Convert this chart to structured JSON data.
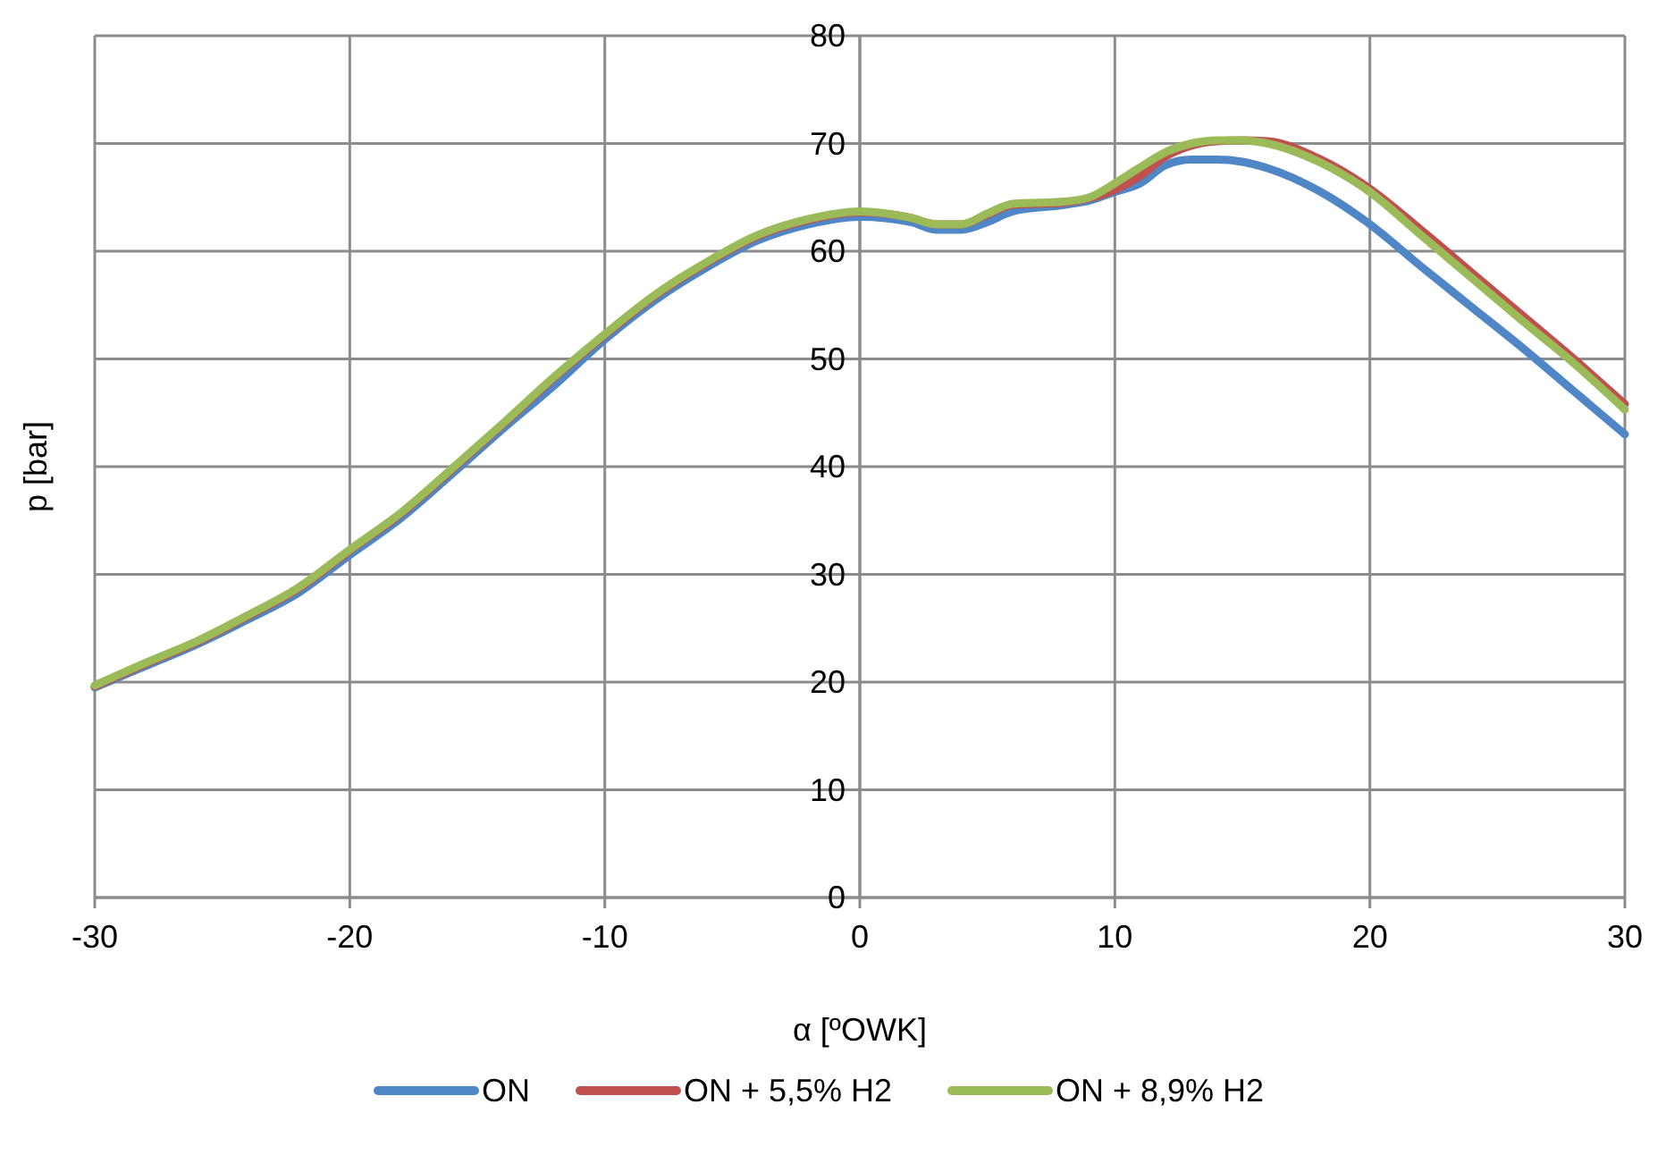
{
  "chart_data": {
    "type": "line",
    "xlabel": "α [ºOWK]",
    "ylabel": "p [bar]",
    "x": [
      -30,
      -28,
      -26,
      -24,
      -22,
      -20,
      -18,
      -16,
      -14,
      -12,
      -10,
      -8,
      -6,
      -4,
      -2,
      0,
      2,
      3,
      4,
      5,
      6,
      8,
      9,
      10,
      11,
      12,
      13,
      14,
      15,
      16,
      18,
      20,
      22,
      24,
      26,
      28,
      30
    ],
    "series": [
      {
        "name": "ON",
        "color": "#4f87c6",
        "values": [
          19.5,
          21.5,
          23.5,
          25.8,
          28.3,
          31.8,
          35.2,
          39.3,
          43.5,
          47.5,
          51.8,
          55.5,
          58.5,
          61,
          62.5,
          63.2,
          62.7,
          62,
          62,
          62.7,
          63.7,
          64.3,
          64.7,
          65.5,
          66.3,
          68,
          68.5,
          68.5,
          68.3,
          67.7,
          65.6,
          62.5,
          58.6,
          54.8,
          51,
          47,
          43
        ]
      },
      {
        "name": "ON + 5,5% H2",
        "color": "#c0504d",
        "values": [
          19.6,
          21.7,
          23.7,
          26.1,
          28.7,
          32.2,
          35.6,
          39.7,
          43.9,
          48.2,
          52.2,
          55.9,
          58.9,
          61.4,
          62.9,
          63.6,
          63.1,
          62.5,
          62.5,
          63.4,
          64.3,
          64.5,
          64.9,
          65.7,
          67,
          68.8,
          69.8,
          70.2,
          70.3,
          70.2,
          68.6,
          65.8,
          62,
          58,
          54,
          50,
          45.8
        ]
      },
      {
        "name": "ON + 8,9% H2",
        "color": "#9bbb59",
        "values": [
          19.7,
          21.8,
          23.8,
          26.2,
          28.8,
          32.3,
          35.7,
          39.8,
          44,
          48.3,
          52.3,
          56,
          59,
          61.5,
          63,
          63.7,
          63.1,
          62.5,
          62.5,
          63.5,
          64.4,
          64.6,
          65,
          66.3,
          67.8,
          69.2,
          70,
          70.3,
          70.3,
          70,
          68.3,
          65.5,
          61.5,
          57.5,
          53.5,
          49.6,
          45.3
        ]
      }
    ],
    "xlim": [
      -30,
      30
    ],
    "xticks": [
      -30,
      -20,
      -10,
      0,
      10,
      20,
      30
    ],
    "ylim": [
      0,
      80
    ],
    "yticks": [
      0,
      10,
      20,
      30,
      40,
      50,
      60,
      70,
      80
    ],
    "grid": true,
    "legend": "bottom",
    "marker": "none",
    "line_style": "solid"
  }
}
